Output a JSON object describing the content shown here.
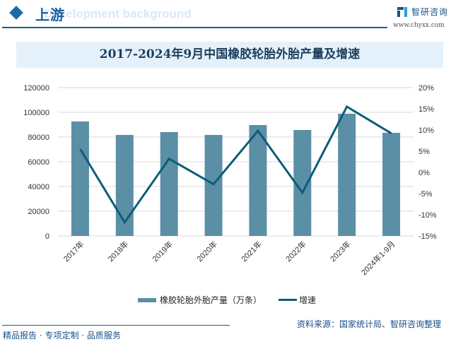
{
  "header": {
    "section_title": "上游",
    "section_bg_text": "Development background",
    "brand_name": "智研咨询",
    "brand_url": "www.chyxx.com"
  },
  "footer": {
    "slogan": "精品报告 · 专项定制 · 品质服务",
    "source": "资料来源：国家统计局、智研咨询整理"
  },
  "legend": {
    "bar_label": "橡胶轮胎外胎产量（万条）",
    "line_label": "增速"
  },
  "colors": {
    "bar": "#5b8fa6",
    "line": "#0d5c7a",
    "title_band": "#e5f1fa",
    "accent": "#1a5f9e"
  },
  "chart_data": {
    "type": "bar",
    "title": "2017-2024年9月中国橡胶轮胎外胎产量及增速",
    "categories": [
      "2017年",
      "2018年",
      "2019年",
      "2020年",
      "2021年",
      "2022年",
      "2023年",
      "2024年1-9月"
    ],
    "series": [
      {
        "name": "橡胶轮胎外胎产量（万条）",
        "type": "bar",
        "axis": "left",
        "values": [
          92600,
          81700,
          84000,
          81700,
          89700,
          85700,
          98900,
          83400
        ]
      },
      {
        "name": "增速",
        "type": "line",
        "axis": "right",
        "unit": "%",
        "values": [
          5.5,
          -11.8,
          3.2,
          -2.8,
          9.8,
          -4.8,
          15.5,
          9.2
        ]
      }
    ],
    "left_axis": {
      "ylim": [
        0,
        120000
      ],
      "ticks": [
        "0",
        "20000",
        "40000",
        "60000",
        "80000",
        "100000",
        "120000"
      ]
    },
    "right_axis": {
      "ylim": [
        -15,
        20
      ],
      "ticks": [
        "-15%",
        "-10%",
        "-5%",
        "0%",
        "5%",
        "10%",
        "15%",
        "20%"
      ]
    },
    "xlabel": "",
    "ylabel": "",
    "grid": true,
    "legend_position": "bottom"
  }
}
